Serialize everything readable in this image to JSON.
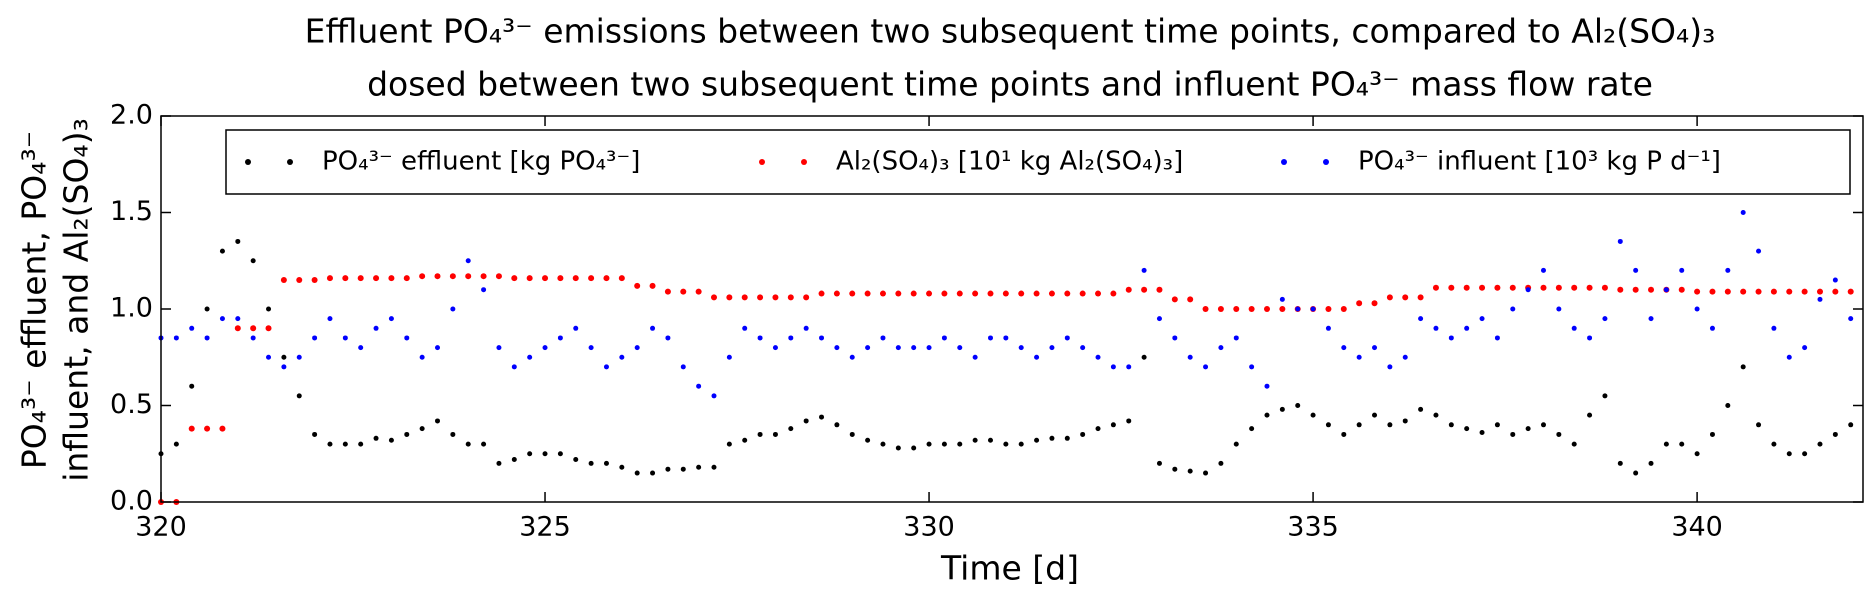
{
  "chart_data": {
    "type": "scatter",
    "title_lines": [
      "Effluent PO₄³⁻ emissions between two subsequent time points, compared to Al₂(SO₄)₃",
      "dosed between two subsequent time points and influent PO₄³⁻ mass flow rate"
    ],
    "xlabel": "Time [d]",
    "ylabel_lines": [
      "PO₄³⁻ effluent, PO₄³⁻",
      "influent, and Al₂(SO₄)₃"
    ],
    "xlim": [
      320,
      342.16
    ],
    "xticks": [
      320,
      325,
      330,
      335,
      340
    ],
    "ylim": [
      0,
      2
    ],
    "yticks": [
      {
        "value": 0,
        "label": "0.0"
      },
      {
        "value": 0.5,
        "label": "0.5"
      },
      {
        "value": 1,
        "label": "1.0"
      },
      {
        "value": 1.5,
        "label": "1.5"
      },
      {
        "value": 2,
        "label": "2.0"
      }
    ],
    "legend": "top",
    "x": [
      320,
      320.2,
      320.4,
      320.6,
      320.8,
      321,
      321.2,
      321.4,
      321.6,
      321.8,
      322,
      322.2,
      322.4,
      322.6,
      322.8,
      323,
      323.2,
      323.4,
      323.6,
      323.8,
      324,
      324.2,
      324.4,
      324.6,
      324.8,
      325,
      325.2,
      325.4,
      325.6,
      325.8,
      326,
      326.2,
      326.4,
      326.6,
      326.8,
      327,
      327.2,
      327.4,
      327.6,
      327.8,
      328,
      328.2,
      328.4,
      328.6,
      328.8,
      329,
      329.2,
      329.4,
      329.6,
      329.8,
      330,
      330.2,
      330.4,
      330.6,
      330.8,
      331,
      331.2,
      331.4,
      331.6,
      331.8,
      332,
      332.2,
      332.4,
      332.6,
      332.8,
      333,
      333.2,
      333.4,
      333.6,
      333.8,
      334,
      334.2,
      334.4,
      334.6,
      334.8,
      335,
      335.2,
      335.4,
      335.6,
      335.8,
      336,
      336.2,
      336.4,
      336.6,
      336.8,
      337,
      337.2,
      337.4,
      337.6,
      337.8,
      338,
      338.2,
      338.4,
      338.6,
      338.8,
      339,
      339.2,
      339.4,
      339.6,
      339.8,
      340,
      340.2,
      340.4,
      340.6,
      340.8,
      341,
      341.2,
      341.4,
      341.6,
      341.8,
      342
    ],
    "series": [
      {
        "name": "PO₄³⁻ effluent [kg PO₄³⁻]",
        "color": "#000000",
        "values": [
          0.25,
          0.3,
          0.6,
          1.0,
          1.3,
          1.35,
          1.25,
          1.0,
          0.75,
          0.55,
          0.35,
          0.3,
          0.3,
          0.3,
          0.33,
          0.32,
          0.35,
          0.38,
          0.42,
          0.35,
          0.3,
          0.3,
          0.2,
          0.22,
          0.25,
          0.25,
          0.25,
          0.22,
          0.2,
          0.2,
          0.18,
          0.15,
          0.15,
          0.17,
          0.17,
          0.18,
          0.18,
          0.3,
          0.32,
          0.35,
          0.35,
          0.38,
          0.42,
          0.44,
          0.4,
          0.35,
          0.32,
          0.3,
          0.28,
          0.28,
          0.3,
          0.3,
          0.3,
          0.32,
          0.32,
          0.3,
          0.3,
          0.32,
          0.33,
          0.33,
          0.35,
          0.38,
          0.4,
          0.42,
          0.75,
          0.2,
          0.17,
          0.16,
          0.15,
          0.2,
          0.3,
          0.38,
          0.45,
          0.48,
          0.5,
          0.45,
          0.4,
          0.35,
          0.4,
          0.45,
          0.4,
          0.42,
          0.48,
          0.45,
          0.4,
          0.38,
          0.36,
          0.4,
          0.35,
          0.38,
          0.4,
          0.35,
          0.3,
          0.45,
          0.55,
          0.2,
          0.15,
          0.2,
          0.3,
          0.3,
          0.25,
          0.35,
          0.5,
          0.7,
          0.4,
          0.3,
          0.25,
          0.25,
          0.3,
          0.35,
          0.4
        ]
      },
      {
        "name": "Al₂(SO₄)₃ [10¹ kg Al₂(SO₄)₃]",
        "color": "#ff0000",
        "values": [
          0,
          0,
          0.38,
          0.38,
          0.38,
          0.9,
          0.9,
          0.9,
          1.15,
          1.15,
          1.15,
          1.16,
          1.16,
          1.16,
          1.16,
          1.16,
          1.16,
          1.17,
          1.17,
          1.17,
          1.17,
          1.17,
          1.17,
          1.16,
          1.16,
          1.16,
          1.16,
          1.16,
          1.16,
          1.16,
          1.16,
          1.12,
          1.12,
          1.09,
          1.09,
          1.09,
          1.06,
          1.06,
          1.06,
          1.06,
          1.06,
          1.06,
          1.06,
          1.08,
          1.08,
          1.08,
          1.08,
          1.08,
          1.08,
          1.08,
          1.08,
          1.08,
          1.08,
          1.08,
          1.08,
          1.08,
          1.08,
          1.08,
          1.08,
          1.08,
          1.08,
          1.08,
          1.08,
          1.1,
          1.1,
          1.1,
          1.05,
          1.05,
          1.0,
          1.0,
          1.0,
          1.0,
          1.0,
          1.0,
          1.0,
          1.0,
          1.0,
          1.0,
          1.03,
          1.03,
          1.06,
          1.06,
          1.06,
          1.11,
          1.11,
          1.11,
          1.11,
          1.11,
          1.11,
          1.11,
          1.11,
          1.11,
          1.11,
          1.11,
          1.11,
          1.1,
          1.1,
          1.1,
          1.1,
          1.1,
          1.09,
          1.09,
          1.09,
          1.09,
          1.09,
          1.09,
          1.09,
          1.09,
          1.09,
          1.09,
          1.09
        ]
      },
      {
        "name": "PO₄³⁻ influent [10³ kg P d⁻¹]",
        "color": "#0000ff",
        "values": [
          0.85,
          0.85,
          0.9,
          0.85,
          0.95,
          0.95,
          0.85,
          0.75,
          0.7,
          0.75,
          0.85,
          0.95,
          0.85,
          0.8,
          0.9,
          0.95,
          0.85,
          0.75,
          0.8,
          1.0,
          1.25,
          1.1,
          0.8,
          0.7,
          0.75,
          0.8,
          0.85,
          0.9,
          0.8,
          0.7,
          0.75,
          0.8,
          0.9,
          0.85,
          0.7,
          0.6,
          0.55,
          0.75,
          0.9,
          0.85,
          0.8,
          0.85,
          0.9,
          0.85,
          0.8,
          0.75,
          0.8,
          0.85,
          0.8,
          0.8,
          0.8,
          0.85,
          0.8,
          0.75,
          0.85,
          0.85,
          0.8,
          0.75,
          0.8,
          0.85,
          0.8,
          0.75,
          0.7,
          0.7,
          1.2,
          0.95,
          0.85,
          0.75,
          0.7,
          0.8,
          0.85,
          0.7,
          0.6,
          1.05,
          1.0,
          1.0,
          0.9,
          0.8,
          0.75,
          0.8,
          0.7,
          0.75,
          0.95,
          0.9,
          0.85,
          0.9,
          0.95,
          0.85,
          1.0,
          1.1,
          1.2,
          1.0,
          0.9,
          0.85,
          0.95,
          1.35,
          1.2,
          0.95,
          1.1,
          1.2,
          1.0,
          0.9,
          1.2,
          1.5,
          1.3,
          0.9,
          0.75,
          0.8,
          1.05,
          1.15,
          0.95
        ]
      }
    ]
  }
}
